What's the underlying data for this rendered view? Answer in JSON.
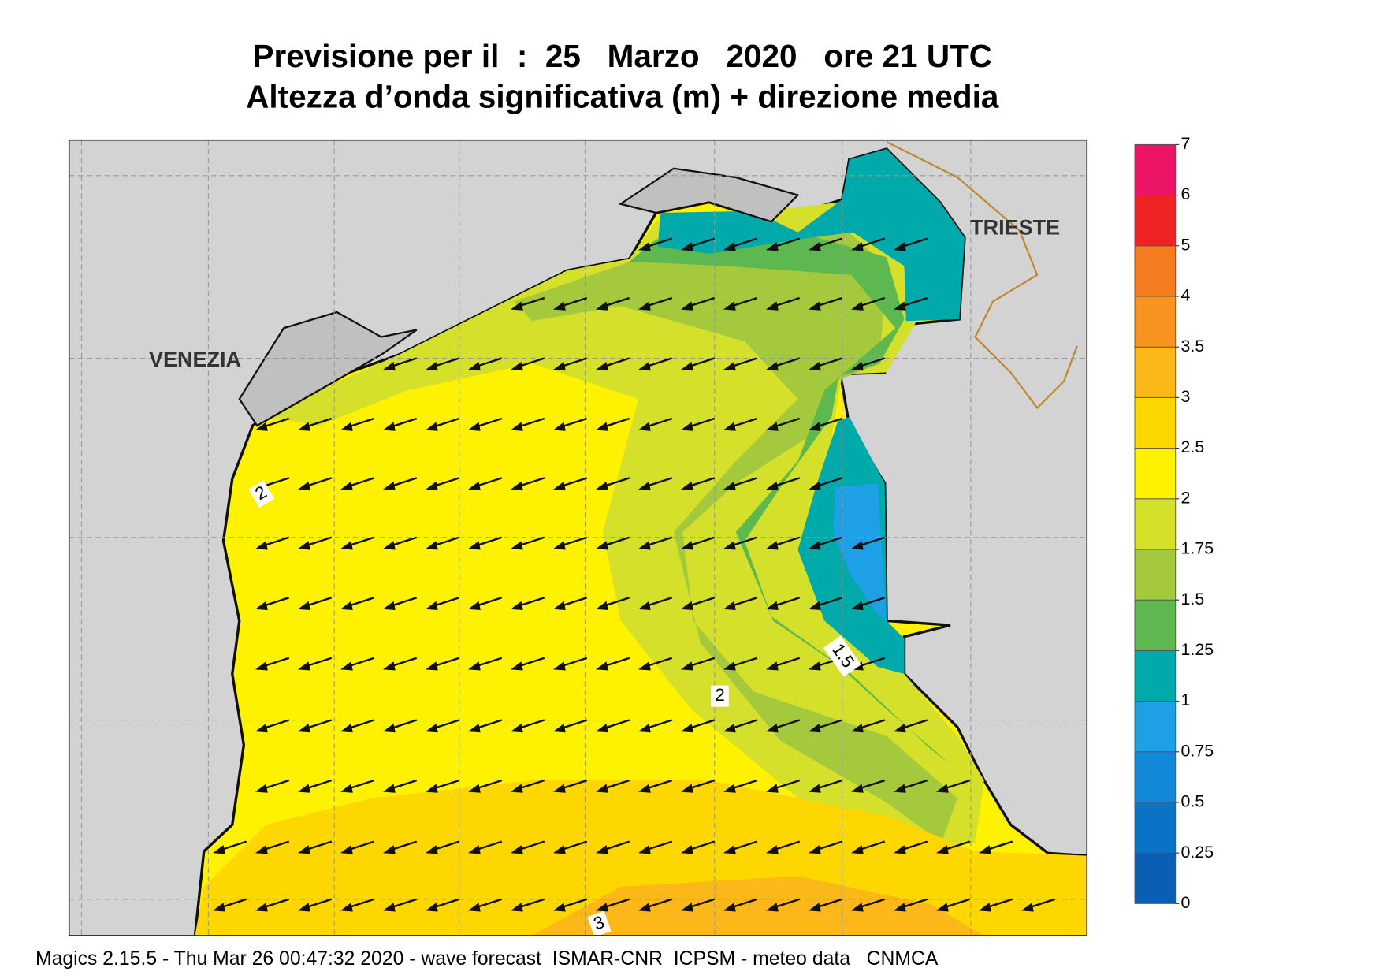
{
  "title": [
    "Previsione per il  :  25   Marzo   2020   ore 21 UTC",
    "Altezza d’onda significativa (m) + direzione media"
  ],
  "places": [
    "VENEZIA",
    "TRIESTE"
  ],
  "contour_labels": [
    "2",
    "1.5",
    "2",
    "3"
  ],
  "colorbar": {
    "levels": [
      0,
      0.25,
      0.5,
      0.75,
      1,
      1.25,
      1.5,
      1.75,
      2,
      2.5,
      3,
      3.5,
      4,
      5,
      6,
      7
    ],
    "colors": [
      "#0a5fb4",
      "#0b73c6",
      "#1488d8",
      "#1ea0e6",
      "#00aaaa",
      "#5cb84f",
      "#a5c93c",
      "#d4e02a",
      "#fff200",
      "#ffd700",
      "#fbb818",
      "#f79420",
      "#f47b20",
      "#ee2424",
      "#ec1466"
    ]
  },
  "footer": "Magics 2.15.5 - Thu Mar 26 00:47:32 2020 - wave forecast  ISMAR-CNR  ICPSM - meteo data   CNMCA"
}
